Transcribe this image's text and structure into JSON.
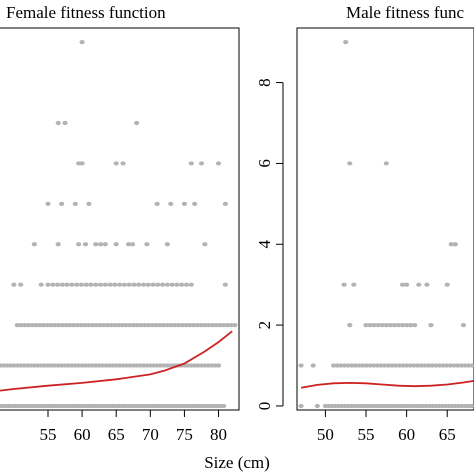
{
  "figure": {
    "xlabel": "Size (cm)"
  },
  "chart_data": [
    {
      "type": "scatter",
      "title": "Female fitness function",
      "xlabel": "Size (cm)",
      "ylabel": "",
      "xlim": [
        46.5,
        83
      ],
      "ylim": [
        -0.1,
        9.35
      ],
      "x_ticks": [
        55,
        60,
        65,
        70,
        75,
        80
      ],
      "y_ticks": [],
      "point_color": "#b3b3b3",
      "curve_color": "#cc2222",
      "points": [
        {
          "x": 60,
          "y": 9
        },
        {
          "x": 56.5,
          "y": 7
        },
        {
          "x": 57.5,
          "y": 7
        },
        {
          "x": 68,
          "y": 7
        },
        {
          "x": 59.5,
          "y": 6
        },
        {
          "x": 60,
          "y": 6
        },
        {
          "x": 65,
          "y": 6
        },
        {
          "x": 66,
          "y": 6
        },
        {
          "x": 76,
          "y": 6
        },
        {
          "x": 77.5,
          "y": 6
        },
        {
          "x": 80,
          "y": 6
        },
        {
          "x": 55,
          "y": 5
        },
        {
          "x": 57,
          "y": 5
        },
        {
          "x": 59,
          "y": 5
        },
        {
          "x": 61,
          "y": 5
        },
        {
          "x": 71,
          "y": 5
        },
        {
          "x": 73,
          "y": 5
        },
        {
          "x": 75,
          "y": 5
        },
        {
          "x": 76.5,
          "y": 5
        },
        {
          "x": 81,
          "y": 5
        },
        {
          "x": 53,
          "y": 4
        },
        {
          "x": 56.5,
          "y": 4
        },
        {
          "x": 59.5,
          "y": 4
        },
        {
          "x": 60.5,
          "y": 4
        },
        {
          "x": 62,
          "y": 4
        },
        {
          "x": 62.7,
          "y": 4
        },
        {
          "x": 63.4,
          "y": 4
        },
        {
          "x": 65,
          "y": 4
        },
        {
          "x": 66.8,
          "y": 4
        },
        {
          "x": 67.4,
          "y": 4
        },
        {
          "x": 69.5,
          "y": 4
        },
        {
          "x": 72.5,
          "y": 4
        },
        {
          "x": 78,
          "y": 4
        },
        {
          "x": 50,
          "y": 3
        },
        {
          "x": 51,
          "y": 3
        },
        {
          "x": 54,
          "y": 3
        },
        {
          "x": 81,
          "y": 3
        }
      ],
      "dense_rows": [
        {
          "y": 3,
          "x_from": 55,
          "x_to": 76,
          "step": 0.7
        },
        {
          "y": 2,
          "x_from": 50.5,
          "x_to": 82.5,
          "step": 0.55
        },
        {
          "y": 1,
          "x_from": 47,
          "x_to": 80,
          "step": 0.5
        },
        {
          "y": 0,
          "x_from": 47,
          "x_to": 81,
          "step": 0.45
        }
      ],
      "curve": {
        "x": [
          46.5,
          50,
          55,
          60,
          65,
          70,
          72,
          75,
          78,
          80,
          82
        ],
        "y": [
          0.35,
          0.42,
          0.5,
          0.57,
          0.66,
          0.78,
          0.87,
          1.05,
          1.35,
          1.58,
          1.85
        ]
      }
    },
    {
      "type": "scatter",
      "title": "Male fitness func",
      "xlabel": "Size (cm)",
      "ylabel": "",
      "xlim": [
        46.5,
        68.3
      ],
      "ylim": [
        -0.1,
        9.35
      ],
      "x_ticks": [
        50,
        55,
        60,
        65
      ],
      "y_ticks": [
        0,
        2,
        4,
        6,
        8
      ],
      "point_color": "#b3b3b3",
      "curve_color": "#cc2222",
      "points": [
        {
          "x": 52.5,
          "y": 9
        },
        {
          "x": 53,
          "y": 6
        },
        {
          "x": 57.5,
          "y": 6
        },
        {
          "x": 52.3,
          "y": 3
        },
        {
          "x": 53.5,
          "y": 3
        },
        {
          "x": 59.5,
          "y": 3
        },
        {
          "x": 60,
          "y": 3
        },
        {
          "x": 61.5,
          "y": 3
        },
        {
          "x": 62.5,
          "y": 3
        },
        {
          "x": 65,
          "y": 3
        },
        {
          "x": 65.5,
          "y": 4
        },
        {
          "x": 66,
          "y": 4
        },
        {
          "x": 53,
          "y": 2
        },
        {
          "x": 63,
          "y": 2
        },
        {
          "x": 67,
          "y": 2
        },
        {
          "x": 47,
          "y": 1
        },
        {
          "x": 48.5,
          "y": 1
        },
        {
          "x": 47,
          "y": 0
        },
        {
          "x": 49,
          "y": 0
        }
      ],
      "dense_rows": [
        {
          "y": 2,
          "x_from": 55,
          "x_to": 61,
          "step": 0.5
        },
        {
          "y": 1,
          "x_from": 51,
          "x_to": 68.3,
          "step": 0.45
        },
        {
          "y": 0,
          "x_from": 50,
          "x_to": 68.3,
          "step": 0.4
        }
      ],
      "curve": {
        "x": [
          47,
          49,
          51,
          53,
          55,
          57,
          59,
          61,
          63,
          65,
          67,
          68.3
        ],
        "y": [
          0.45,
          0.52,
          0.56,
          0.57,
          0.56,
          0.53,
          0.5,
          0.49,
          0.5,
          0.53,
          0.58,
          0.62
        ]
      }
    }
  ]
}
